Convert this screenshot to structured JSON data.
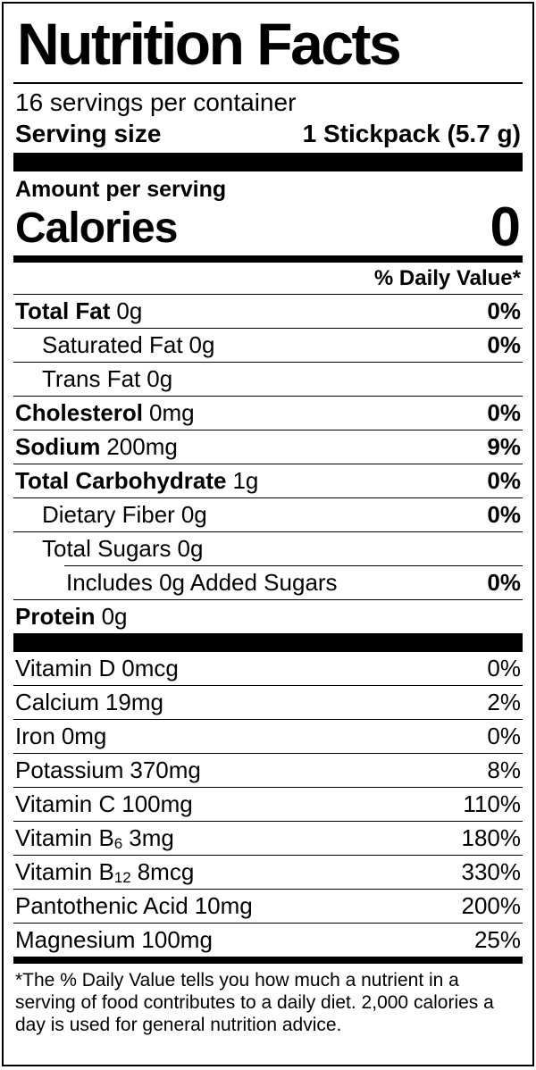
{
  "label": {
    "title": "Nutrition Facts",
    "servings_per_container": "16 servings per container",
    "serving_size_label": "Serving size",
    "serving_size_value": "1 Stickpack (5.7 g)",
    "amount_per_serving": "Amount per serving",
    "calories_label": "Calories",
    "calories_value": "0",
    "daily_value_header": "% Daily Value*",
    "footnote": "*The % Daily Value tells you how much a nutrient in a serving of food contributes to a daily diet. 2,000 calories a day is used for general nutrition advice."
  },
  "nutrients": [
    {
      "name": "Total Fat",
      "amount": "0g",
      "dv": "0%"
    },
    {
      "name": "Saturated Fat",
      "amount": "0g",
      "dv": "0%"
    },
    {
      "name": "Trans Fat",
      "amount": "0g",
      "dv": ""
    },
    {
      "name": "Cholesterol",
      "amount": "0mg",
      "dv": "0%"
    },
    {
      "name": "Sodium",
      "amount": "200mg",
      "dv": "9%"
    },
    {
      "name": "Total Carbohydrate",
      "amount": "1g",
      "dv": "0%"
    },
    {
      "name": "Dietary Fiber",
      "amount": "0g",
      "dv": "0%"
    },
    {
      "name": "Total Sugars",
      "amount": "0g",
      "dv": ""
    },
    {
      "name": "Includes 0g Added Sugars",
      "amount": "",
      "dv": "0%"
    },
    {
      "name": "Protein",
      "amount": "0g",
      "dv": ""
    }
  ],
  "vitamins": [
    {
      "name": "Vitamin D",
      "sub": "",
      "amount": "0mcg",
      "dv": "0%"
    },
    {
      "name": "Calcium",
      "sub": "",
      "amount": "19mg",
      "dv": "2%"
    },
    {
      "name": "Iron",
      "sub": "",
      "amount": "0mg",
      "dv": "0%"
    },
    {
      "name": "Potassium",
      "sub": "",
      "amount": "370mg",
      "dv": "8%"
    },
    {
      "name": "Vitamin C",
      "sub": "",
      "amount": "100mg",
      "dv": "110%"
    },
    {
      "name": "Vitamin B",
      "sub": "6",
      "amount": "3mg",
      "dv": "180%"
    },
    {
      "name": "Vitamin B",
      "sub": "12",
      "amount": "8mcg",
      "dv": "330%"
    },
    {
      "name": "Pantothenic Acid",
      "sub": "",
      "amount": "10mg",
      "dv": "200%"
    },
    {
      "name": "Magnesium",
      "sub": "",
      "amount": "100mg",
      "dv": "25%"
    }
  ]
}
